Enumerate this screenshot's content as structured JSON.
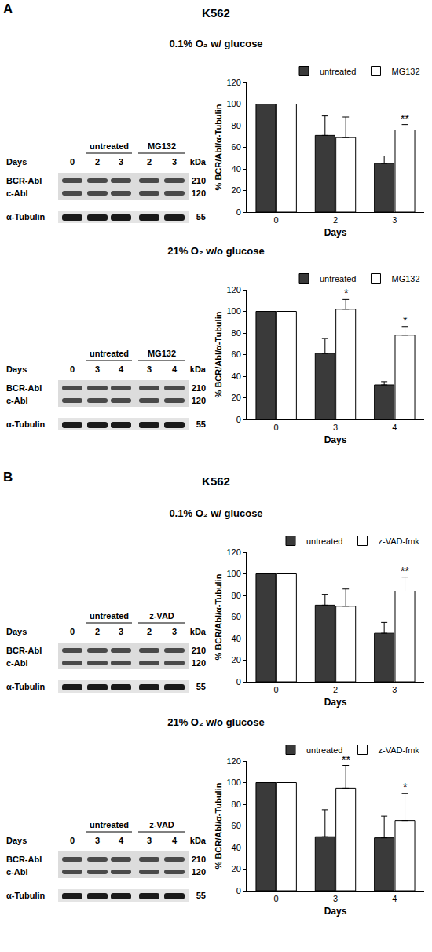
{
  "panels": [
    {
      "label": "A",
      "title": "K562"
    },
    {
      "label": "B",
      "title": "K562"
    }
  ],
  "blots": [
    {
      "panel": "A",
      "days_label": "Days",
      "groups": [
        "untreated",
        "MG132"
      ],
      "days": [
        "0",
        "2",
        "3",
        "2",
        "3"
      ],
      "rows": [
        "BCR-Abl",
        "c-Abl",
        "α-Tubulin"
      ],
      "kda_label": "kDa",
      "kda": [
        "210",
        "120",
        "55"
      ]
    },
    {
      "panel": "A",
      "days_label": "Days",
      "groups": [
        "untreated",
        "MG132"
      ],
      "days": [
        "0",
        "3",
        "4",
        "3",
        "4"
      ],
      "rows": [
        "BCR-Abl",
        "c-Abl",
        "α-Tubulin"
      ],
      "kda_label": "kDa",
      "kda": [
        "210",
        "120",
        "55"
      ]
    },
    {
      "panel": "B",
      "days_label": "Days",
      "groups": [
        "untreated",
        "z-VAD"
      ],
      "days": [
        "0",
        "2",
        "3",
        "2",
        "3"
      ],
      "rows": [
        "BCR-Abl",
        "c-Abl",
        "α-Tubulin"
      ],
      "kda_label": "kDa",
      "kda": [
        "210",
        "120",
        "55"
      ]
    },
    {
      "panel": "B",
      "days_label": "Days",
      "groups": [
        "untreated",
        "z-VAD"
      ],
      "days": [
        "0",
        "3",
        "4",
        "3",
        "4"
      ],
      "rows": [
        "BCR-Abl",
        "c-Abl",
        "α-Tubulin"
      ],
      "kda_label": "kDa",
      "kda": [
        "210",
        "120",
        "55"
      ]
    }
  ],
  "chart_data": [
    {
      "type": "bar",
      "title": "0.1% O₂ w/ glucose",
      "x_label": "Days",
      "y_label": "% BCR/Abl/α-Tubulin",
      "categories": [
        "0",
        "2",
        "3"
      ],
      "ylim": [
        0,
        120
      ],
      "yticks": [
        0,
        20,
        40,
        60,
        80,
        100,
        120
      ],
      "grid": false,
      "legend": "top right",
      "series": [
        {
          "name": "untreated",
          "color": "#3a3a3a",
          "values": [
            100,
            71,
            45
          ],
          "errors": [
            0,
            18,
            7
          ]
        },
        {
          "name": "MG132",
          "color": "#ffffff",
          "values": [
            100,
            69,
            76
          ],
          "errors": [
            0,
            19,
            5
          ]
        }
      ],
      "annotations": [
        {
          "category": "3",
          "series": "MG132",
          "text": "**"
        }
      ]
    },
    {
      "type": "bar",
      "title": "21% O₂ w/o glucose",
      "x_label": "Days",
      "y_label": "% BCR/Abl/α-Tubulin",
      "categories": [
        "0",
        "3",
        "4"
      ],
      "ylim": [
        0,
        120
      ],
      "yticks": [
        0,
        20,
        40,
        60,
        80,
        100,
        120
      ],
      "grid": false,
      "legend": "top right",
      "series": [
        {
          "name": "untreated",
          "color": "#3a3a3a",
          "values": [
            100,
            61,
            32
          ],
          "errors": [
            0,
            14,
            3
          ]
        },
        {
          "name": "MG132",
          "color": "#ffffff",
          "values": [
            100,
            102,
            78
          ],
          "errors": [
            0,
            9,
            8
          ]
        }
      ],
      "annotations": [
        {
          "category": "3",
          "series": "MG132",
          "text": "*"
        },
        {
          "category": "4",
          "series": "MG132",
          "text": "*"
        }
      ]
    },
    {
      "type": "bar",
      "title": "0.1% O₂ w/ glucose",
      "x_label": "Days",
      "y_label": "% BCR/Abl/α-Tubulin",
      "categories": [
        "0",
        "2",
        "3"
      ],
      "ylim": [
        0,
        120
      ],
      "yticks": [
        0,
        20,
        40,
        60,
        80,
        100,
        120
      ],
      "grid": false,
      "legend": "top right",
      "series": [
        {
          "name": "untreated",
          "color": "#3a3a3a",
          "values": [
            100,
            71,
            45
          ],
          "errors": [
            0,
            10,
            10
          ]
        },
        {
          "name": "z-VAD-fmk",
          "color": "#ffffff",
          "values": [
            100,
            70,
            84
          ],
          "errors": [
            0,
            16,
            13
          ]
        }
      ],
      "annotations": [
        {
          "category": "3",
          "series": "z-VAD-fmk",
          "text": "**"
        }
      ]
    },
    {
      "type": "bar",
      "title": "21% O₂ w/o glucose",
      "x_label": "Days",
      "y_label": "% BCR/Abl/α-Tubulin",
      "categories": [
        "0",
        "3",
        "4"
      ],
      "ylim": [
        0,
        120
      ],
      "yticks": [
        0,
        20,
        40,
        60,
        80,
        100,
        120
      ],
      "grid": false,
      "legend": "top right",
      "series": [
        {
          "name": "untreated",
          "color": "#3a3a3a",
          "values": [
            100,
            50,
            49
          ],
          "errors": [
            0,
            25,
            20
          ]
        },
        {
          "name": "z-VAD-fmk",
          "color": "#ffffff",
          "values": [
            100,
            95,
            65
          ],
          "errors": [
            0,
            21,
            25
          ]
        }
      ],
      "annotations": [
        {
          "category": "3",
          "series": "z-VAD-fmk",
          "text": "**"
        },
        {
          "category": "4",
          "series": "z-VAD-fmk",
          "text": "*"
        }
      ]
    }
  ]
}
